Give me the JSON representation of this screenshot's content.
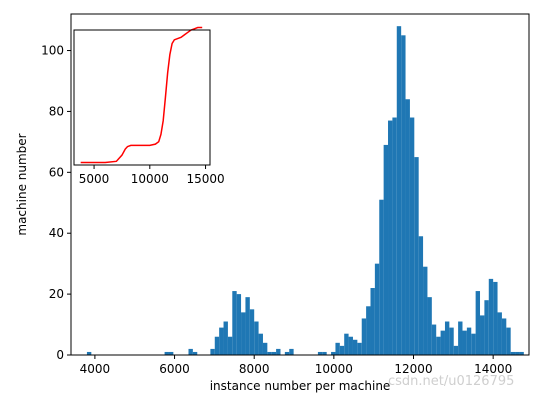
{
  "chart_data": [
    {
      "type": "bar",
      "xlabel": "instance number per machine",
      "ylabel": "machine number",
      "xlim": [
        3400,
        14900
      ],
      "ylim": [
        0,
        112
      ],
      "x_ticks": [
        4000,
        6000,
        8000,
        10000,
        12000,
        14000
      ],
      "y_ticks": [
        0,
        20,
        40,
        60,
        80,
        100
      ],
      "bin_width": 110,
      "color": "#1f77b4",
      "grid": false,
      "bins": [
        {
          "x": 3800,
          "y": 1
        },
        {
          "x": 5750,
          "y": 1
        },
        {
          "x": 5860,
          "y": 1
        },
        {
          "x": 6350,
          "y": 2
        },
        {
          "x": 6460,
          "y": 1
        },
        {
          "x": 6900,
          "y": 2
        },
        {
          "x": 7010,
          "y": 6
        },
        {
          "x": 7120,
          "y": 9
        },
        {
          "x": 7230,
          "y": 11
        },
        {
          "x": 7340,
          "y": 6
        },
        {
          "x": 7450,
          "y": 21
        },
        {
          "x": 7560,
          "y": 20
        },
        {
          "x": 7670,
          "y": 14
        },
        {
          "x": 7780,
          "y": 19
        },
        {
          "x": 7890,
          "y": 15
        },
        {
          "x": 8000,
          "y": 11
        },
        {
          "x": 8110,
          "y": 7
        },
        {
          "x": 8220,
          "y": 4
        },
        {
          "x": 8330,
          "y": 1
        },
        {
          "x": 8440,
          "y": 1
        },
        {
          "x": 8550,
          "y": 2
        },
        {
          "x": 8770,
          "y": 1
        },
        {
          "x": 8880,
          "y": 2
        },
        {
          "x": 9600,
          "y": 1
        },
        {
          "x": 9710,
          "y": 1
        },
        {
          "x": 9930,
          "y": 1
        },
        {
          "x": 10040,
          "y": 4
        },
        {
          "x": 10150,
          "y": 3
        },
        {
          "x": 10260,
          "y": 7
        },
        {
          "x": 10370,
          "y": 6
        },
        {
          "x": 10480,
          "y": 5
        },
        {
          "x": 10590,
          "y": 4
        },
        {
          "x": 10700,
          "y": 12
        },
        {
          "x": 10810,
          "y": 16
        },
        {
          "x": 10920,
          "y": 22
        },
        {
          "x": 11030,
          "y": 30
        },
        {
          "x": 11140,
          "y": 51
        },
        {
          "x": 11250,
          "y": 69
        },
        {
          "x": 11360,
          "y": 77
        },
        {
          "x": 11470,
          "y": 78
        },
        {
          "x": 11580,
          "y": 108
        },
        {
          "x": 11690,
          "y": 105
        },
        {
          "x": 11800,
          "y": 84
        },
        {
          "x": 11910,
          "y": 78
        },
        {
          "x": 12020,
          "y": 65
        },
        {
          "x": 12130,
          "y": 39
        },
        {
          "x": 12240,
          "y": 29
        },
        {
          "x": 12350,
          "y": 19
        },
        {
          "x": 12460,
          "y": 10
        },
        {
          "x": 12570,
          "y": 6
        },
        {
          "x": 12680,
          "y": 8
        },
        {
          "x": 12790,
          "y": 11
        },
        {
          "x": 12900,
          "y": 9
        },
        {
          "x": 13010,
          "y": 3
        },
        {
          "x": 13120,
          "y": 11
        },
        {
          "x": 13230,
          "y": 8
        },
        {
          "x": 13340,
          "y": 9
        },
        {
          "x": 13450,
          "y": 7
        },
        {
          "x": 13560,
          "y": 21
        },
        {
          "x": 13670,
          "y": 13
        },
        {
          "x": 13780,
          "y": 18
        },
        {
          "x": 13890,
          "y": 25
        },
        {
          "x": 14000,
          "y": 24
        },
        {
          "x": 14110,
          "y": 14
        },
        {
          "x": 14220,
          "y": 12
        },
        {
          "x": 14330,
          "y": 9
        },
        {
          "x": 14440,
          "y": 1
        },
        {
          "x": 14550,
          "y": 1
        },
        {
          "x": 14660,
          "y": 1
        }
      ]
    },
    {
      "type": "line",
      "xlim": [
        3200,
        15400
      ],
      "ylim": [
        0,
        110
      ],
      "x_ticks": [
        5000,
        10000,
        15000
      ],
      "color": "#ff0000",
      "grid": false,
      "series": [
        {
          "x": [
            3800,
            5000,
            6000,
            7000,
            7500,
            7800,
            8000,
            8300,
            8600,
            9000,
            9500,
            10000,
            10500,
            10800,
            11000,
            11200,
            11400,
            11600,
            11800,
            12000,
            12200,
            12500,
            12800,
            13100,
            13400,
            13700,
            14000,
            14300,
            14700
          ],
          "y": [
            2,
            2,
            2,
            3,
            8,
            13,
            15,
            16,
            16,
            16,
            16,
            16,
            17,
            19,
            25,
            36,
            55,
            75,
            90,
            99,
            102,
            103,
            104,
            106,
            108,
            110,
            111,
            112,
            112
          ]
        }
      ]
    }
  ],
  "watermark": "csdn.net/u0126795"
}
